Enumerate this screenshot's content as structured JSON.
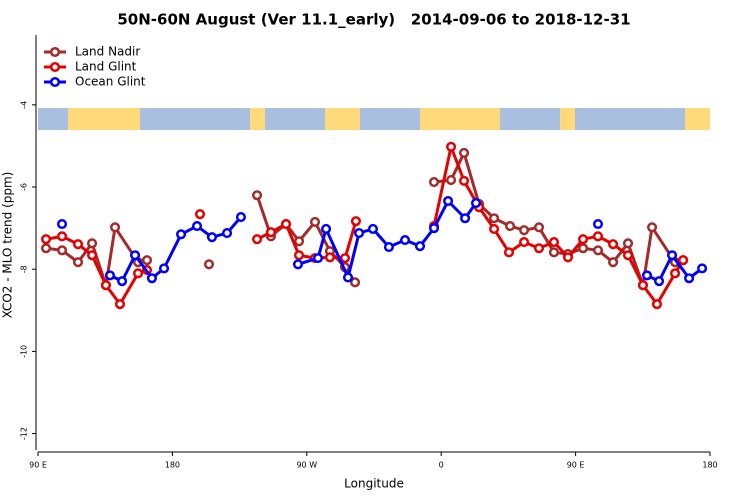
{
  "chart_data": {
    "type": "line",
    "title": "50N-60N August (Ver 11.1_early)   2014-09-06 to 2018-12-31",
    "x_label": "Longitude",
    "y_label": "XCO2 - MLO trend (ppm)",
    "xlim": [
      90,
      540
    ],
    "xticks": [
      {
        "value": 90,
        "label": "90 E"
      },
      {
        "value": 180,
        "label": "180"
      },
      {
        "value": 270,
        "label": "90 W"
      },
      {
        "value": 360,
        "label": "0"
      },
      {
        "value": 450,
        "label": "90 E"
      },
      {
        "value": 540,
        "label": "180"
      }
    ],
    "ylim": [
      -12.4,
      -2.3
    ],
    "yticks": [
      -4,
      -6,
      -8,
      -10,
      -12
    ],
    "legend": "top-left",
    "series": [
      {
        "name": "Land Nadir",
        "color": "#a52a2a",
        "x": [
          95.4,
          106.1,
          116.8,
          126.2,
          135.5,
          141.6,
          157.0,
          163.0,
          180,
          204.5,
          220,
          236.7,
          246.0,
          256.1,
          264.8,
          275.5,
          285.5,
          295.6,
          302.3,
          330,
          355.2,
          366.6,
          375.3,
          385.3,
          395.4,
          406.1,
          415.5,
          425.5,
          435.5,
          444.9,
          455.0,
          465.0,
          475.1,
          485.1,
          495.1,
          501.2,
          516.6,
          522.0
        ],
        "values": [
          -7.49,
          -7.54,
          -7.83,
          -7.37,
          -8.39,
          -6.98,
          -7.83,
          -7.78,
          null,
          -7.88,
          null,
          -6.2,
          -7.2,
          -6.9,
          -7.32,
          -6.85,
          -7.56,
          -7.95,
          -8.32,
          null,
          -5.88,
          -5.83,
          -5.17,
          -6.41,
          -6.76,
          -6.95,
          -7.05,
          -6.98,
          -7.59,
          -7.63,
          -7.49,
          -7.54,
          -7.83,
          -7.37,
          -8.39,
          -6.98,
          -7.83,
          -7.78
        ]
      },
      {
        "name": "Land Glint",
        "color": "#e60000",
        "x": [
          95.4,
          106.1,
          116.8,
          126.2,
          135.5,
          144.9,
          157.0,
          163.0,
          180,
          198.5,
          220,
          236.7,
          246.0,
          256.1,
          264.8,
          275.5,
          285.5,
          295.6,
          302.9,
          330,
          355.2,
          366.6,
          375.3,
          385.3,
          395.4,
          405.4,
          415.5,
          425.5,
          435.5,
          444.9,
          455.0,
          465.0,
          475.1,
          485.1,
          495.1,
          504.5,
          516.6,
          522.0
        ],
        "values": [
          -7.27,
          -7.2,
          -7.39,
          -7.66,
          -8.39,
          -8.85,
          -8.1,
          -8.02,
          null,
          -6.66,
          null,
          -7.27,
          -7.1,
          -6.9,
          -7.66,
          -7.73,
          -7.71,
          -7.73,
          -6.83,
          null,
          -6.95,
          -5.02,
          -5.85,
          -6.49,
          -7.02,
          -7.59,
          -7.34,
          -7.49,
          -7.34,
          -7.71,
          -7.27,
          -7.2,
          -7.39,
          -7.66,
          -8.39,
          -8.85,
          -8.1,
          -7.78
        ]
      },
      {
        "name": "Ocean Glint",
        "color": "#0000ff",
        "x": [
          106.1,
          120,
          138.2,
          146.3,
          155.0,
          166.3,
          174.4,
          185.8,
          196.5,
          206.5,
          216.6,
          225.9,
          250,
          264.1,
          277.5,
          282.9,
          297.6,
          305.0,
          314.3,
          325.0,
          335.8,
          345.8,
          355.2,
          364.6,
          376.0,
          383.3,
          420,
          465.0,
          480,
          497.8,
          505.9,
          514.6,
          526.0,
          534.7
        ],
        "values": [
          -6.9,
          null,
          -8.15,
          -8.29,
          -7.66,
          -8.22,
          -7.98,
          -7.15,
          -6.95,
          -7.22,
          -7.12,
          -6.73,
          null,
          -7.88,
          -7.73,
          -7.02,
          -8.2,
          -7.12,
          -7.02,
          -7.46,
          -7.29,
          -7.44,
          -7.0,
          -6.34,
          -6.76,
          -6.39,
          null,
          -6.9,
          null,
          -8.15,
          -8.29,
          -7.66,
          -8.22,
          -7.98
        ]
      }
    ]
  }
}
